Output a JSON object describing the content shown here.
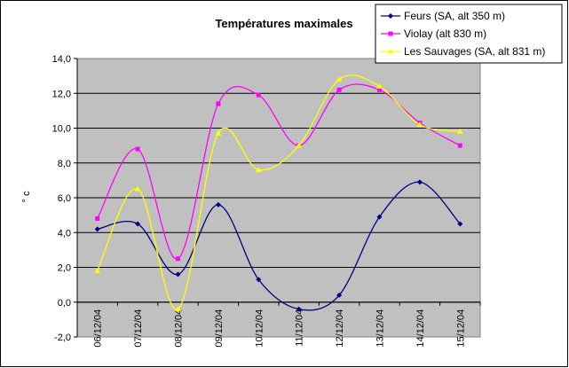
{
  "chart_data": {
    "type": "line",
    "title": "Températures maximales",
    "xlabel": "",
    "ylabel": "° c",
    "ylim": [
      -2.0,
      14.0
    ],
    "ytick_step": 2.0,
    "ytick_labels": [
      "-2,0",
      "0,0",
      "2,0",
      "4,0",
      "6,0",
      "8,0",
      "10,0",
      "12,0",
      "14,0"
    ],
    "categories": [
      "06/12/04",
      "07/12/04",
      "08/12/04",
      "09/12/04",
      "10/12/04",
      "11/12/04",
      "12/12/04",
      "13/12/04",
      "14/12/04",
      "15/12/04"
    ],
    "grid": true,
    "legend_position": "top-right",
    "plot_background": "#c0c0c0",
    "series": [
      {
        "name": "Feurs (SA, alt 350 m)",
        "color": "#000080",
        "marker": "diamond",
        "values": [
          4.2,
          4.5,
          1.6,
          5.6,
          1.3,
          -0.4,
          0.4,
          4.9,
          6.9,
          4.5
        ]
      },
      {
        "name": "Violay (alt 830 m)",
        "color": "#ff00ff",
        "marker": "square",
        "values": [
          4.8,
          8.8,
          2.5,
          11.4,
          11.9,
          9.0,
          12.2,
          12.2,
          10.3,
          9.0
        ]
      },
      {
        "name": "Les Sauvages (SA, alt 831 m)",
        "color": "#ffff00",
        "marker": "triangle",
        "values": [
          1.8,
          6.5,
          -0.4,
          9.7,
          7.6,
          9.0,
          12.8,
          12.4,
          10.2,
          9.8
        ]
      }
    ]
  }
}
